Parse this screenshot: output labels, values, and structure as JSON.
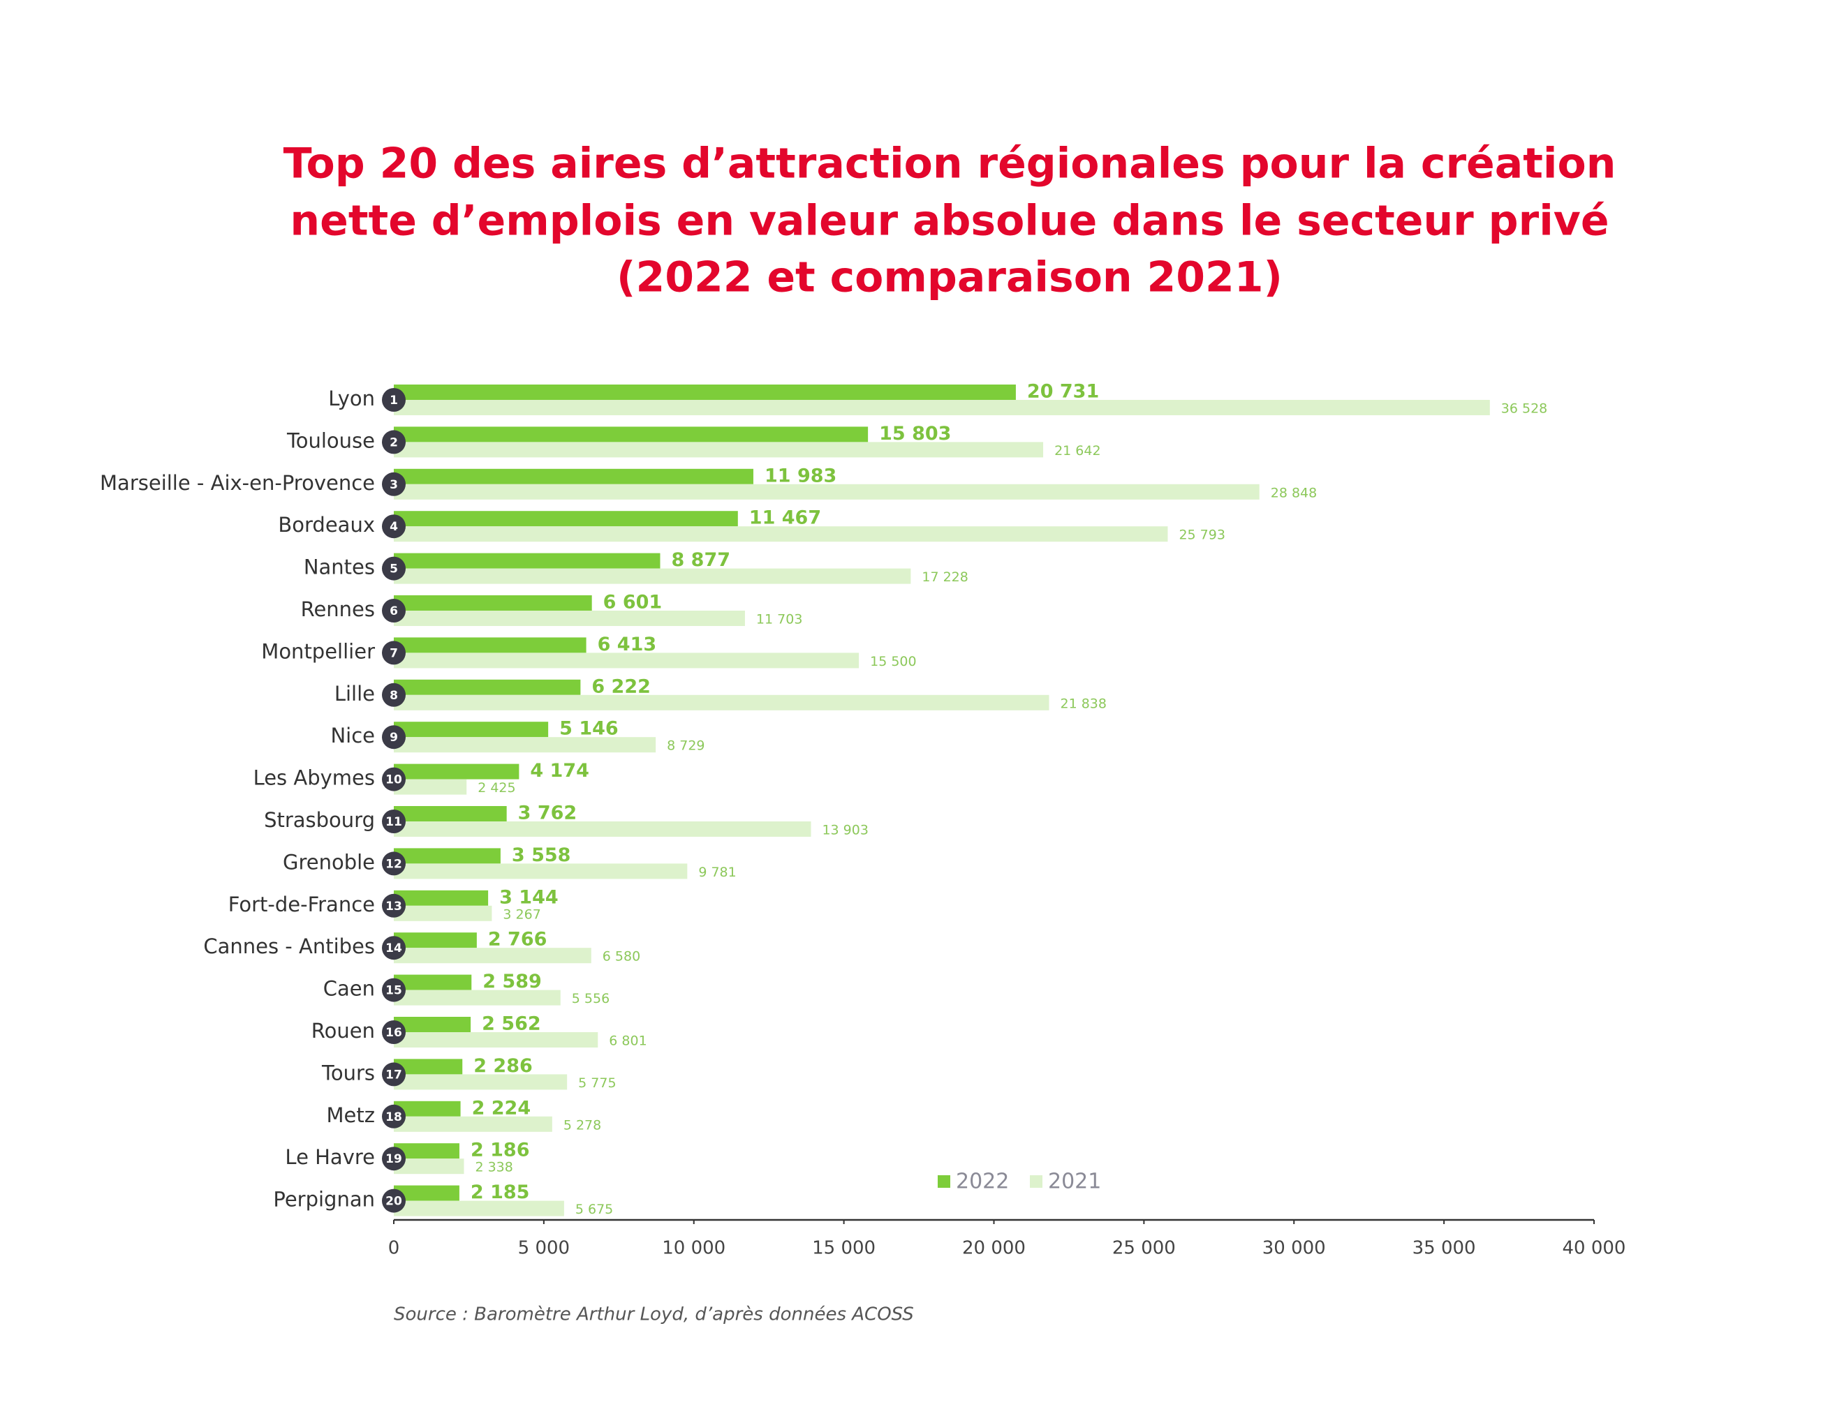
{
  "chart_data": {
    "type": "bar",
    "orientation": "horizontal",
    "title": [
      "Top 20 des aires d’attraction régionales pour la création",
      "nette d’emplois en valeur absolue dans le secteur privé",
      "(2022 et comparaison 2021)"
    ],
    "categories": [
      "Lyon",
      "Toulouse",
      "Marseille - Aix-en-Provence",
      "Bordeaux",
      "Nantes",
      "Rennes",
      "Montpellier",
      "Lille",
      "Nice",
      "Les Abymes",
      "Strasbourg",
      "Grenoble",
      "Fort-de-France",
      "Cannes - Antibes",
      "Caen",
      "Rouen",
      "Tours",
      "Metz",
      "Le Havre",
      "Perpignan"
    ],
    "ranks": [
      1,
      2,
      3,
      4,
      5,
      6,
      7,
      8,
      9,
      10,
      11,
      12,
      13,
      14,
      15,
      16,
      17,
      18,
      19,
      20
    ],
    "series": [
      {
        "name": "2022",
        "color": "#7dcd3a",
        "label_color": "#7dc23e",
        "values": [
          20731,
          15803,
          11983,
          11467,
          8877,
          6601,
          6413,
          6222,
          5146,
          4174,
          3762,
          3558,
          3144,
          2766,
          2589,
          2562,
          2286,
          2224,
          2186,
          2185
        ],
        "value_labels": [
          "20 731",
          "15 803",
          "11 983",
          "11 467",
          "8 877",
          "6 601",
          "6 413",
          "6 222",
          "5 146",
          "4 174",
          "3 762",
          "3 558",
          "3 144",
          "2 766",
          "2 589",
          "2 562",
          "2 286",
          "2 224",
          "2 186",
          "2 185"
        ]
      },
      {
        "name": "2021",
        "color": "#ddf2cc",
        "label_color": "#8cc85a",
        "values": [
          36528,
          21642,
          28848,
          25793,
          17228,
          11703,
          15500,
          21838,
          8729,
          2425,
          13903,
          9781,
          3267,
          6580,
          5556,
          6801,
          5775,
          5278,
          2338,
          5675
        ],
        "value_labels": [
          "36 528",
          "21 642",
          "28 848",
          "25 793",
          "17 228",
          "11 703",
          "15 500",
          "21 838",
          "8 729",
          "2 425",
          "13 903",
          "9 781",
          "3 267",
          "6 580",
          "5 556",
          "6 801",
          "5 775",
          "5 278",
          "2 338",
          "5 675"
        ]
      }
    ],
    "xlim": [
      0,
      40000
    ],
    "xticks": [
      0,
      {
        "value": 5000,
        "label": "5 000"
      },
      {
        "value": 10000,
        "label": "10 000"
      },
      {
        "value": 15000,
        "label": "15 000"
      },
      {
        "value": 20000,
        "label": "20 000"
      },
      {
        "value": 25000,
        "label": "25 000"
      },
      {
        "value": 30000,
        "label": "30 000"
      },
      {
        "value": 35000,
        "label": "35 000"
      },
      {
        "value": 40000,
        "label": "40 000"
      }
    ],
    "legend": "lower right",
    "source": "Source : Baromètre Arthur Loyd, d’après données ACOSS"
  }
}
